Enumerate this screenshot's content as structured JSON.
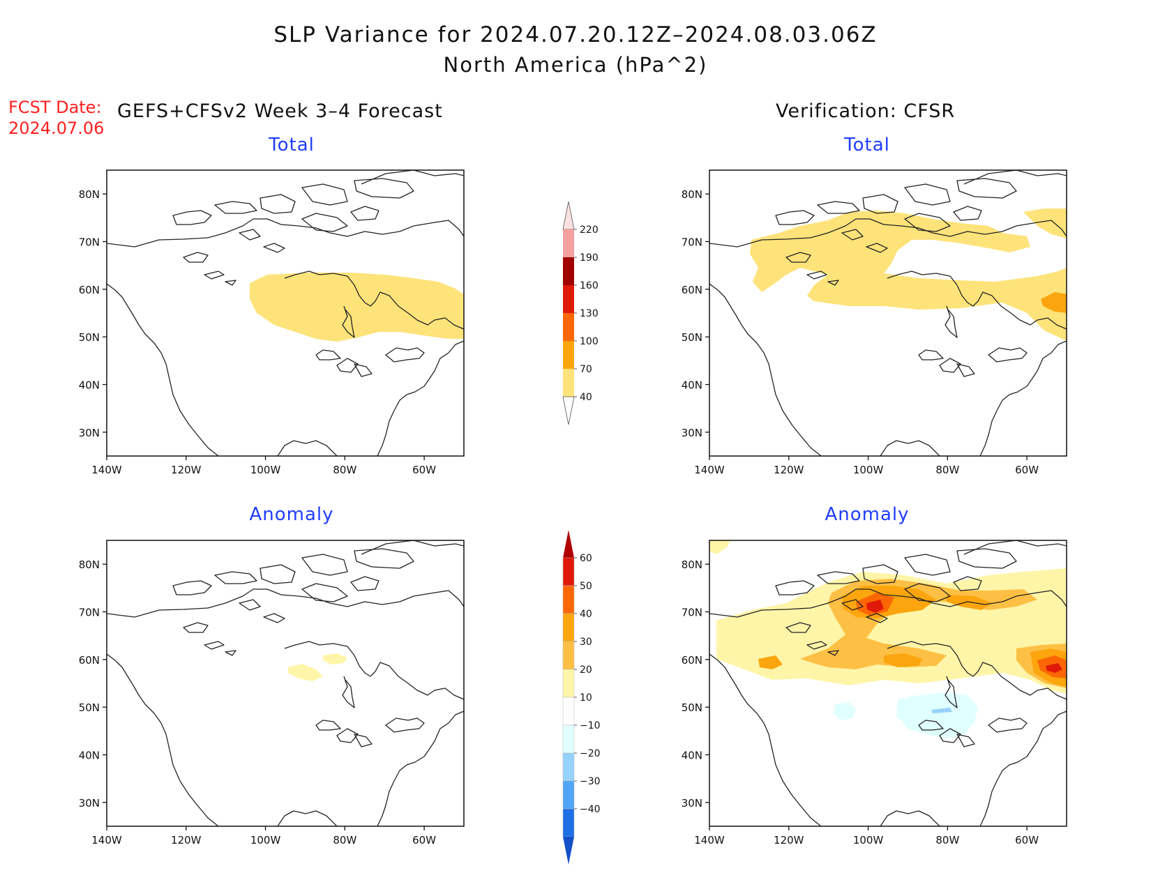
{
  "title": "SLP Variance for 2024.07.20.12Z–2024.08.03.06Z",
  "subtitle": "North America (hPa^2)",
  "fcst_label": "FCST Date:",
  "fcst_date": "2024.07.06",
  "left_header": "GEFS+CFSv2 Week 3–4 Forecast",
  "right_header": "Verification: CFSR",
  "panels": {
    "fcst_total": {
      "title": "Total"
    },
    "ver_total": {
      "title": "Total"
    },
    "fcst_anom": {
      "title": "Anomaly"
    },
    "ver_anom": {
      "title": "Anomaly"
    }
  },
  "axes": {
    "x_ticks": [
      "140W",
      "120W",
      "100W",
      "80W",
      "60W"
    ],
    "y_ticks": [
      "80N",
      "70N",
      "60N",
      "50N",
      "40N",
      "30N"
    ],
    "lon_range": [
      -140,
      -50
    ],
    "lat_range": [
      25,
      85
    ]
  },
  "colorbar_total": {
    "levels": [
      "40",
      "70",
      "100",
      "130",
      "160",
      "190",
      "220"
    ],
    "colors": [
      "#fde37a",
      "#fca50e",
      "#fc6705",
      "#e01a08",
      "#a00000",
      "#f4a0a0",
      "#fde0e0"
    ]
  },
  "colorbar_anom": {
    "levels": [
      "60",
      "50",
      "40",
      "30",
      "20",
      "10",
      "−10",
      "−20",
      "−30",
      "−40"
    ],
    "colors": [
      "#b00000",
      "#e01a08",
      "#fc6705",
      "#fca50e",
      "#fdc045",
      "#fff5a8",
      "#ffffff",
      "#e0ffff",
      "#96d2fa",
      "#50a5f5",
      "#1e6ee6",
      "#1450c8"
    ]
  },
  "chart_data": [
    {
      "type": "heatmap",
      "title": "Total",
      "source": "GEFS+CFSv2 Week 3–4 Forecast",
      "features": [
        {
          "level": "40-70",
          "region": "Hudson Bay / central Canada",
          "lon": [
            -104,
            -50
          ],
          "lat": [
            50,
            62
          ]
        }
      ]
    },
    {
      "type": "heatmap",
      "title": "Total",
      "source": "Verification: CFSR",
      "features": [
        {
          "level": "40-70",
          "region": "Arctic archipelago / N Canada"
        },
        {
          "level": "70-100",
          "region": "Labrador Sea",
          "lon": -53,
          "lat": 57
        }
      ]
    },
    {
      "type": "heatmap",
      "title": "Anomaly",
      "source": "GEFS+CFSv2 Week 3–4 Forecast",
      "features": [
        {
          "level": "10-20",
          "region": "Hudson Bay south shore"
        }
      ]
    },
    {
      "type": "heatmap",
      "title": "Anomaly",
      "source": "Verification: CFSR",
      "features": [
        {
          "level": "40-50",
          "region": "Arctic archipelago",
          "lon": -96,
          "lat": 71
        },
        {
          "level": "40-50",
          "region": "Labrador Sea",
          "lon": -52,
          "lat": 58
        },
        {
          "level": "-10 to -20",
          "region": "Great Lakes / Ontario"
        }
      ]
    }
  ]
}
